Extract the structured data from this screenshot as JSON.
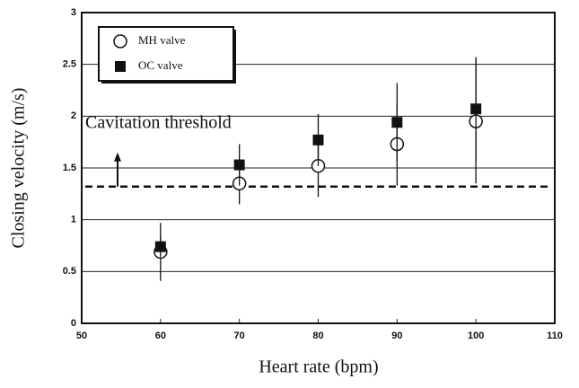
{
  "chart_data": {
    "type": "scatter",
    "x_label": "Heart rate (bpm)",
    "y_label": "Closing velocity (m/s)",
    "x": [
      60,
      70,
      80,
      90,
      100
    ],
    "series": [
      {
        "name": "MH valve",
        "marker": "circle",
        "color": "#111111",
        "values": [
          0.69,
          1.35,
          1.52,
          1.73,
          1.95
        ],
        "errors": [
          0.28,
          0.2,
          0.3,
          0.4,
          0.6
        ]
      },
      {
        "name": "OC valve",
        "marker": "square",
        "color": "#111111",
        "values": [
          0.74,
          1.53,
          1.77,
          1.94,
          2.07
        ],
        "errors": [
          0.1,
          0.2,
          0.25,
          0.38,
          0.5
        ]
      }
    ],
    "threshold": 1.32,
    "threshold_label": "Cavitation threshold",
    "xlim": [
      50,
      110
    ],
    "xticks": [
      50,
      60,
      70,
      80,
      90,
      100,
      110
    ],
    "ylim": [
      0,
      3
    ],
    "yticks": [
      0,
      0.5,
      1,
      1.5,
      2,
      2.5,
      3
    ],
    "grid": true
  }
}
